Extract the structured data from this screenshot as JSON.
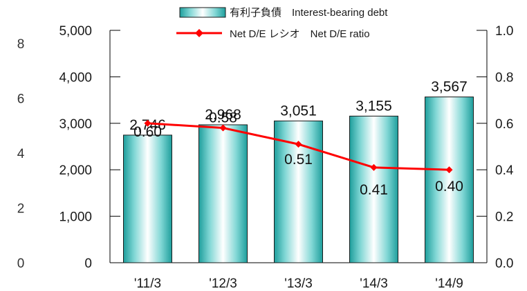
{
  "chart_data": {
    "type": "bar",
    "categories": [
      "'11/3",
      "'12/3",
      "'13/3",
      "'14/3",
      "'14/9"
    ],
    "series": [
      {
        "name": "有利子負債　Interest-bearing debt",
        "type": "bar",
        "axis": "left",
        "values": [
          2746,
          2968,
          3051,
          3155,
          3567
        ],
        "labels": [
          "2,746",
          "2,968",
          "3,051",
          "3,155",
          "3,567"
        ]
      },
      {
        "name": "Net D/E レシオ　Net D/E ratio",
        "type": "line",
        "axis": "right",
        "values": [
          0.6,
          0.58,
          0.51,
          0.41,
          0.4
        ],
        "labels": [
          "0.60",
          "0.58",
          "0.51",
          "0.41",
          "0.40"
        ]
      }
    ],
    "y_left": {
      "ylim": [
        0,
        5000
      ],
      "ticks": [
        0,
        1000,
        2000,
        3000,
        4000,
        5000
      ],
      "tick_labels": [
        "0",
        "1,000",
        "2,000",
        "3,000",
        "4,000",
        "5,000"
      ]
    },
    "y_right": {
      "ylim": [
        0.0,
        1.0
      ],
      "ticks": [
        0.0,
        0.2,
        0.4,
        0.6,
        0.8,
        1.0
      ],
      "tick_labels": [
        "0.0",
        "0.2",
        "0.4",
        "0.6",
        "0.8",
        "1.0"
      ]
    },
    "y_outer": {
      "tick_labels": [
        "0",
        "2",
        "4",
        "6",
        "8"
      ]
    },
    "legend": {
      "position": "top-center"
    },
    "grid": false,
    "colors": {
      "bar_edge": "#1a1a1a",
      "bar_light": "#ffffff",
      "bar_mid": "#7fd6d4",
      "bar_dark": "#1e9e9c",
      "line": "#ff0000",
      "axis": "#000000"
    }
  }
}
